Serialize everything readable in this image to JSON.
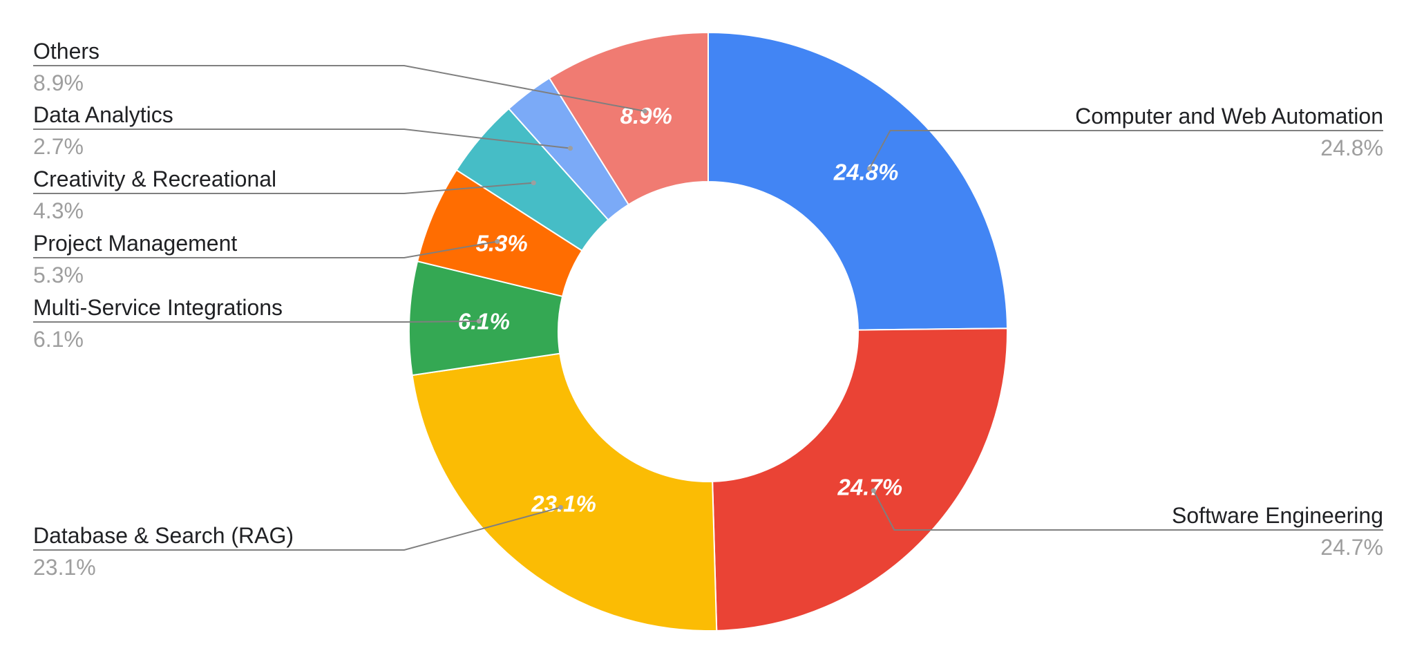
{
  "chart_data": {
    "type": "pie",
    "donut": true,
    "title": "",
    "slices": [
      {
        "label": "Computer and Web Automation",
        "value": 24.8,
        "display": "24.8%",
        "color": "#4285F4",
        "show_inside_label": true
      },
      {
        "label": "Software Engineering",
        "value": 24.7,
        "display": "24.7%",
        "color": "#EA4335",
        "show_inside_label": true
      },
      {
        "label": "Database & Search (RAG)",
        "value": 23.1,
        "display": "23.1%",
        "color": "#FBBC04",
        "show_inside_label": true
      },
      {
        "label": "Multi-Service Integrations",
        "value": 6.1,
        "display": "6.1%",
        "color": "#34A853",
        "show_inside_label": true
      },
      {
        "label": "Project Management",
        "value": 5.3,
        "display": "5.3%",
        "color": "#FF6D01",
        "show_inside_label": true
      },
      {
        "label": "Creativity & Recreational",
        "value": 4.3,
        "display": "4.3%",
        "color": "#46BDC6",
        "show_inside_label": false
      },
      {
        "label": "Data Analytics",
        "value": 2.7,
        "display": "2.7%",
        "color": "#7BAAF7",
        "show_inside_label": false
      },
      {
        "label": "Others",
        "value": 8.9,
        "display": "8.9%",
        "color": "#F07B72",
        "show_inside_label": true
      }
    ],
    "start": "top",
    "direction": "clockwise",
    "label_placement": "outside with leader lines",
    "legend": "none"
  }
}
